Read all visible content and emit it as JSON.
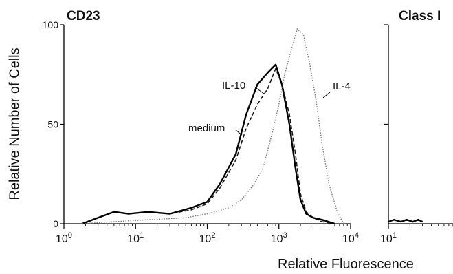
{
  "chart_data": [
    {
      "type": "line",
      "title": "CD23",
      "ylabel": "Relative Number of Cells",
      "xlabel": "Relative Fluorescence",
      "xscale": "log",
      "xlim": [
        1,
        10000
      ],
      "ylim": [
        0,
        100
      ],
      "xticks": [
        {
          "value": 1,
          "base": "10",
          "exp": "0"
        },
        {
          "value": 10,
          "base": "10",
          "exp": "1"
        },
        {
          "value": 100,
          "base": "10",
          "exp": "2"
        },
        {
          "value": 1000,
          "base": "10",
          "exp": "3"
        },
        {
          "value": 10000,
          "base": "10",
          "exp": "4"
        }
      ],
      "yticks": [
        "0",
        "50",
        "100"
      ],
      "series": [
        {
          "name": "medium",
          "color": "#1a1a1a",
          "style": "dashed",
          "x": [
            1.8,
            3,
            5,
            8,
            15,
            30,
            60,
            100,
            150,
            250,
            350,
            500,
            700,
            900,
            1100,
            1400,
            1700,
            2000,
            2400,
            3000,
            4000,
            6000
          ],
          "y": [
            0,
            3,
            6,
            5,
            6,
            5,
            7,
            10,
            18,
            32,
            48,
            60,
            68,
            78,
            70,
            55,
            35,
            15,
            6,
            3,
            1,
            0
          ]
        },
        {
          "name": "IL-10",
          "color": "#000000",
          "style": "solid",
          "x": [
            1.8,
            3,
            5,
            8,
            15,
            30,
            60,
            100,
            150,
            250,
            350,
            500,
            700,
            900,
            1100,
            1400,
            1700,
            2000,
            2400,
            3000,
            4000,
            6000
          ],
          "y": [
            0,
            3,
            6,
            5,
            6,
            5,
            8,
            11,
            20,
            35,
            55,
            70,
            76,
            80,
            70,
            50,
            28,
            12,
            5,
            3,
            2,
            0
          ]
        },
        {
          "name": "IL-4",
          "color": "#777777",
          "style": "dotted",
          "x": [
            1.8,
            5,
            15,
            50,
            100,
            200,
            300,
            450,
            600,
            800,
            1000,
            1200,
            1500,
            1800,
            2200,
            2700,
            3300,
            4000,
            5000,
            6500,
            8000
          ],
          "y": [
            0,
            1,
            2,
            3,
            5,
            8,
            12,
            20,
            28,
            45,
            60,
            75,
            88,
            98,
            95,
            80,
            62,
            40,
            20,
            6,
            0
          ]
        }
      ],
      "annotations": [
        "medium",
        "IL-10",
        "IL-4"
      ]
    },
    {
      "type": "line",
      "title": "Class I",
      "xlabel": "Relative Fluorescence",
      "xscale": "log",
      "xlim": [
        10,
        100
      ],
      "xticks": [
        {
          "value": 10,
          "base": "10",
          "exp": "1"
        }
      ],
      "series": [
        {
          "color": "#000000",
          "style": "solid",
          "x": [
            10,
            12,
            15,
            18,
            22,
            26,
            30
          ],
          "y": [
            1,
            2,
            1,
            2,
            1,
            2,
            1
          ]
        }
      ]
    }
  ]
}
